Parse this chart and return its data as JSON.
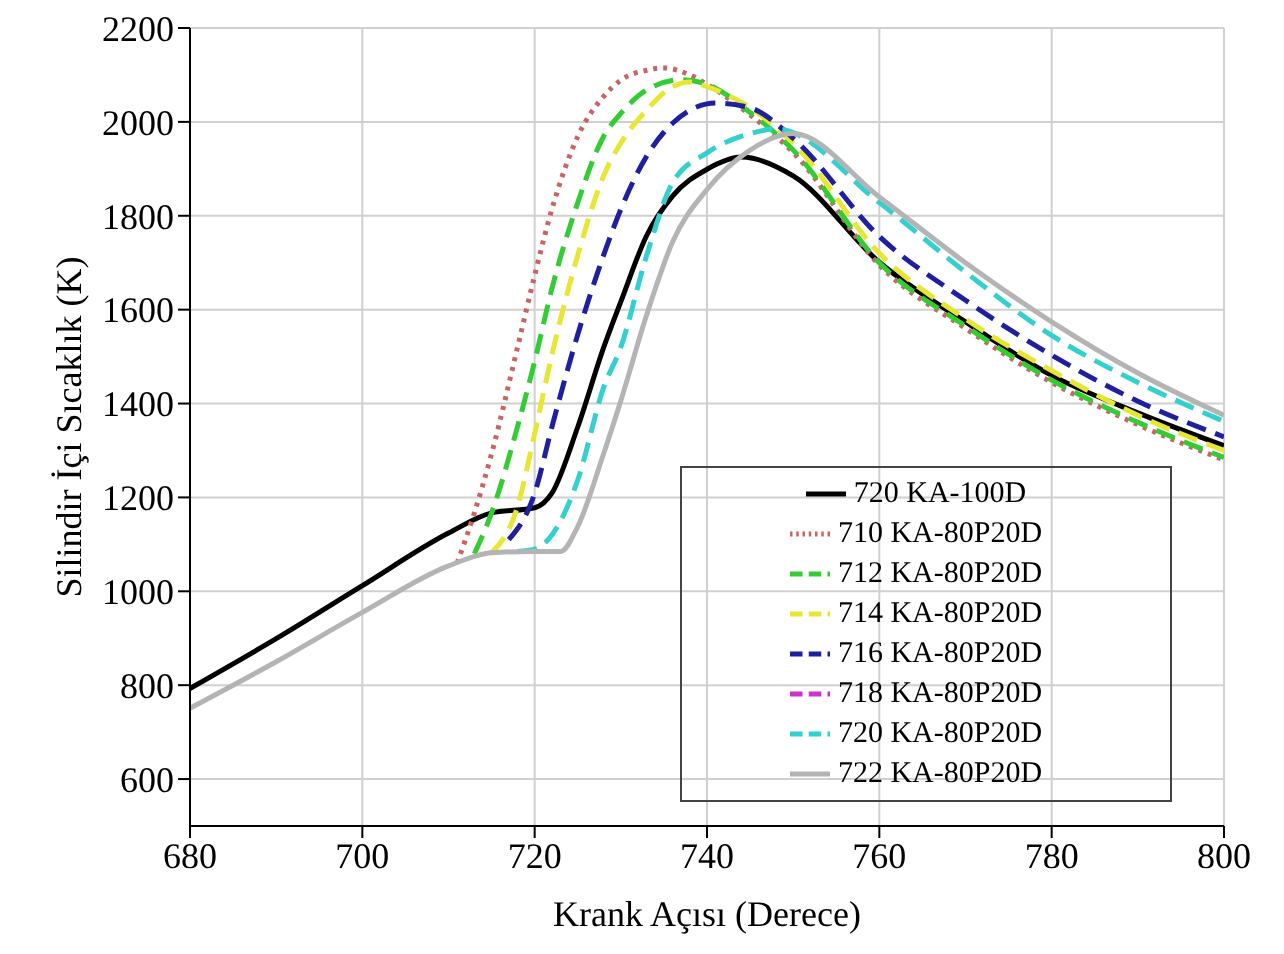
{
  "chart_data": {
    "type": "line",
    "xlabel": "Krank Açısı (Derece)",
    "ylabel": "Silindir İçi Sıcaklık (K)",
    "xlim": [
      680,
      800
    ],
    "xticks": [
      680,
      700,
      720,
      740,
      760,
      780,
      800
    ],
    "ylim": [
      500,
      2200
    ],
    "yticks": [
      600,
      800,
      1000,
      1200,
      1400,
      1600,
      1800,
      2000,
      2200
    ],
    "grid": true,
    "legend": "bottom right",
    "marker": "none",
    "series": [
      {
        "name": "720 KA-100D",
        "color": "#000000",
        "line_style": "solid",
        "x": [
          680,
          690,
          700,
          710,
          715,
          720,
          722,
          725,
          728,
          730,
          733,
          736,
          740,
          744,
          750,
          760,
          770,
          780,
          790,
          800
        ],
        "values": [
          793,
          899,
          1012,
          1124,
          1167,
          1178,
          1209,
          1350,
          1519,
          1617,
          1758,
          1842,
          1899,
          1925,
          1885,
          1701,
          1574,
          1460,
          1380,
          1310
        ]
      },
      {
        "name": "710 KA-80P20D",
        "color": "#c86464",
        "line_style": "dotted",
        "x": [
          711,
          713,
          715,
          718,
          720,
          722,
          725,
          728,
          730,
          733,
          735,
          738,
          740,
          745,
          750,
          760,
          770,
          780,
          790,
          800
        ],
        "values": [
          1060,
          1167,
          1293,
          1519,
          1673,
          1814,
          1969,
          2054,
          2089,
          2110,
          2115,
          2100,
          2080,
          2015,
          1935,
          1695,
          1560,
          1445,
          1355,
          1280
        ]
      },
      {
        "name": "712 KA-80P20D",
        "color": "#33cc33",
        "line_style": "dashed",
        "x": [
          713,
          715,
          718,
          720,
          722,
          725,
          728,
          730,
          733,
          737,
          740,
          745,
          750,
          760,
          770,
          780,
          790,
          800
        ],
        "values": [
          1080,
          1167,
          1350,
          1490,
          1645,
          1828,
          1969,
          2018,
          2068,
          2090,
          2080,
          2020,
          1940,
          1700,
          1565,
          1450,
          1360,
          1285
        ]
      },
      {
        "name": "714 KA-80P20D",
        "color": "#e6e633",
        "line_style": "dashed",
        "x": [
          715,
          718,
          720,
          722,
          725,
          728,
          730,
          733,
          736,
          738,
          740,
          745,
          750,
          760,
          770,
          780,
          790,
          800
        ],
        "values": [
          1082,
          1180,
          1336,
          1504,
          1716,
          1885,
          1955,
          2025,
          2075,
          2085,
          2075,
          2030,
          1955,
          1720,
          1580,
          1470,
          1375,
          1300
        ]
      },
      {
        "name": "716 KA-80P20D",
        "color": "#1f1fa0",
        "line_style": "dashed",
        "x": [
          717,
          720,
          722,
          725,
          728,
          730,
          733,
          736,
          741,
          745,
          750,
          760,
          770,
          780,
          790,
          800
        ],
        "values": [
          1110,
          1209,
          1350,
          1547,
          1716,
          1814,
          1927,
          1997,
          2040,
          2030,
          1965,
          1756,
          1620,
          1503,
          1405,
          1329
        ]
      },
      {
        "name": "718 KA-80P20D",
        "color": "#cc33cc",
        "line_style": "dashed"
      },
      {
        "name": "720 KA-80P20D",
        "color": "#33d0d0",
        "line_style": "dashed",
        "x": [
          718,
          720,
          722,
          725,
          728,
          730,
          733,
          736,
          740,
          745,
          748,
          760,
          770,
          780,
          790,
          800
        ],
        "values": [
          1085,
          1090,
          1120,
          1237,
          1434,
          1520,
          1716,
          1870,
          1934,
          1975,
          1985,
          1828,
          1680,
          1545,
          1445,
          1362
        ]
      },
      {
        "name": "722 KA-80P20D",
        "color": "#b4b4b4",
        "line_style": "solid",
        "x": [
          680,
          690,
          700,
          710,
          715,
          720,
          723,
          725,
          728,
          730,
          733,
          736,
          740,
          745,
          750,
          760,
          770,
          780,
          790,
          800
        ],
        "values": [
          751,
          850,
          955,
          1054,
          1082,
          1085,
          1085,
          1138,
          1293,
          1406,
          1589,
          1744,
          1856,
          1940,
          1975,
          1840,
          1700,
          1574,
          1465,
          1375
        ]
      }
    ]
  }
}
